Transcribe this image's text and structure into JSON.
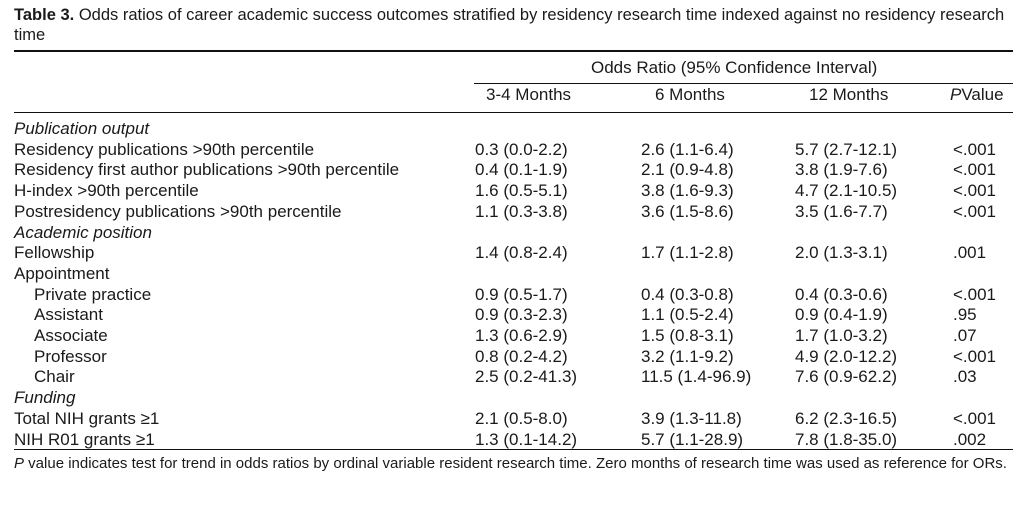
{
  "caption": {
    "label": "Table 3.",
    "text": "Odds ratios of career academic success outcomes stratified by residency research time indexed against no residency research time"
  },
  "group_header": "Odds Ratio (95% Confidence Interval)",
  "columns": {
    "c1": "3-4 Months",
    "c2": "6 Months",
    "c3": "12 Months",
    "p_italic": "P",
    "p_rest": "Value"
  },
  "rows": [
    {
      "label": "Publication output",
      "c1": "",
      "c2": "",
      "c3": "",
      "p": ""
    },
    {
      "label": "Residency publications >90th percentile",
      "c1": "0.3 (0.0-2.2)",
      "c2": "2.6 (1.1-6.4)",
      "c3": "5.7 (2.7-12.1)",
      "p": "<.001"
    },
    {
      "label": "Residency first author publications >90th percentile",
      "c1": "0.4 (0.1-1.9)",
      "c2": "2.1 (0.9-4.8)",
      "c3": "3.8 (1.9-7.6)",
      "p": "<.001"
    },
    {
      "label": "H-index >90th percentile",
      "c1": "1.6 (0.5-5.1)",
      "c2": "3.8 (1.6-9.3)",
      "c3": "4.7 (2.1-10.5)",
      "p": "<.001"
    },
    {
      "label": "Postresidency publications >90th percentile",
      "c1": "1.1 (0.3-3.8)",
      "c2": "3.6 (1.5-8.6)",
      "c3": "3.5 (1.6-7.7)",
      "p": "<.001"
    },
    {
      "label": "Academic position",
      "c1": "",
      "c2": "",
      "c3": "",
      "p": ""
    },
    {
      "label": "Fellowship",
      "c1": "1.4 (0.8-2.4)",
      "c2": "1.7 (1.1-2.8)",
      "c3": "2.0 (1.3-3.1)",
      "p": ".001"
    },
    {
      "label": "Appointment",
      "c1": "",
      "c2": "",
      "c3": "",
      "p": ""
    },
    {
      "label": "Private practice",
      "c1": "0.9 (0.5-1.7)",
      "c2": "0.4 (0.3-0.8)",
      "c3": "0.4 (0.3-0.6)",
      "p": "<.001"
    },
    {
      "label": "Assistant",
      "c1": "0.9 (0.3-2.3)",
      "c2": "1.1 (0.5-2.4)",
      "c3": "0.9 (0.4-1.9)",
      "p": ".95"
    },
    {
      "label": "Associate",
      "c1": "1.3 (0.6-2.9)",
      "c2": "1.5 (0.8-3.1)",
      "c3": "1.7 (1.0-3.2)",
      "p": ".07"
    },
    {
      "label": "Professor",
      "c1": "0.8 (0.2-4.2)",
      "c2": "3.2 (1.1-9.2)",
      "c3": "4.9 (2.0-12.2)",
      "p": "<.001"
    },
    {
      "label": "Chair",
      "c1": "2.5 (0.2-41.3)",
      "c2": "11.5 (1.4-96.9)",
      "c3": "7.6 (0.9-62.2)",
      "p": ".03"
    },
    {
      "label": "Funding",
      "c1": "",
      "c2": "",
      "c3": "",
      "p": ""
    },
    {
      "label": "Total NIH grants ≥1",
      "c1": "2.1 (0.5-8.0)",
      "c2": "3.9 (1.3-11.8)",
      "c3": "6.2 (2.3-16.5)",
      "p": "<.001"
    },
    {
      "label": "NIH R01 grants ≥1",
      "c1": "1.3 (0.1-14.2)",
      "c2": "5.7 (1.1-28.9)",
      "c3": "7.8 (1.8-35.0)",
      "p": ".002"
    }
  ],
  "footer": {
    "p_italic": "P",
    "text": " value indicates test for trend in odds ratios by ordinal variable resident research time. Zero months of research time was used as reference for ORs."
  }
}
